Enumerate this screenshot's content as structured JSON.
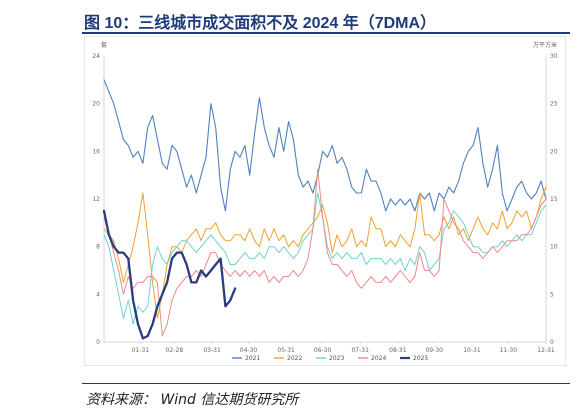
{
  "title": "图 10：三线城市成交面积不及 2024 年（7DMA）",
  "source": "资料来源：   Wind   信达期货研究所",
  "chart_data": {
    "type": "line",
    "left_unit": "套",
    "right_unit": "万平方米",
    "left_ylim": [
      0,
      24
    ],
    "right_ylim": [
      0,
      30
    ],
    "left_ticks": [
      "0",
      "4",
      "8",
      "12",
      "16",
      "20",
      "24"
    ],
    "right_ticks": [
      "0",
      "5",
      "10",
      "15",
      "20",
      "25",
      "30"
    ],
    "x_ticks": [
      {
        "label": "01-31",
        "day": 30
      },
      {
        "label": "02-28",
        "day": 58
      },
      {
        "label": "03-31",
        "day": 89
      },
      {
        "label": "04-30",
        "day": 119
      },
      {
        "label": "05-31",
        "day": 150
      },
      {
        "label": "06-30",
        "day": 180
      },
      {
        "label": "07-31",
        "day": 211
      },
      {
        "label": "08-31",
        "day": 242
      },
      {
        "label": "09-30",
        "day": 272
      },
      {
        "label": "10-31",
        "day": 303
      },
      {
        "label": "11-30",
        "day": 333
      },
      {
        "label": "12-31",
        "day": 364
      }
    ],
    "x_range": [
      0,
      364
    ],
    "series": [
      {
        "name": "2021",
        "color": "#4f81bd",
        "width": 1.1,
        "x": [
          0,
          4,
          8,
          12,
          16,
          20,
          24,
          28,
          32,
          36,
          40,
          44,
          48,
          52,
          56,
          60,
          64,
          68,
          72,
          76,
          80,
          84,
          88,
          92,
          96,
          100,
          104,
          108,
          112,
          116,
          120,
          124,
          128,
          132,
          136,
          140,
          144,
          148,
          152,
          156,
          160,
          164,
          168,
          172,
          176,
          180,
          184,
          188,
          192,
          196,
          200,
          204,
          208,
          212,
          216,
          220,
          224,
          228,
          232,
          236,
          240,
          244,
          248,
          252,
          256,
          260,
          264,
          268,
          272,
          276,
          280,
          284,
          288,
          292,
          296,
          300,
          304,
          308,
          312,
          316,
          320,
          324,
          328,
          332,
          336,
          340,
          344,
          348,
          352,
          356,
          360,
          364
        ],
        "y": [
          22,
          21,
          20,
          18.5,
          17,
          16.5,
          15.5,
          16,
          15,
          18,
          19,
          17,
          15,
          14.5,
          16.5,
          16,
          14.5,
          13,
          14,
          12.5,
          14,
          15.5,
          20,
          18,
          13,
          11,
          14.5,
          16,
          15.5,
          16.5,
          14,
          17.5,
          20.5,
          18,
          16.5,
          15.5,
          18,
          16,
          18.5,
          17,
          14,
          13,
          13.5,
          12.5,
          14,
          16,
          15.5,
          16.5,
          15,
          15.5,
          14.5,
          13,
          12.5,
          12.5,
          14.5,
          13.5,
          13.5,
          12.5,
          11,
          12,
          11.5,
          12,
          11.5,
          12,
          11,
          12.5,
          12,
          12.5,
          11,
          12.5,
          12,
          13,
          12.5,
          13.5,
          15,
          16,
          16.5,
          18,
          15,
          13,
          14.5,
          16.5,
          12.5,
          11,
          12,
          13,
          13.5,
          12.5,
          12,
          12.5,
          13.5,
          12
        ]
      },
      {
        "name": "2022",
        "color": "#f0a030",
        "width": 1.0,
        "x": [
          0,
          4,
          8,
          12,
          16,
          20,
          24,
          28,
          32,
          36,
          40,
          44,
          48,
          52,
          56,
          60,
          64,
          68,
          72,
          76,
          80,
          84,
          88,
          92,
          96,
          100,
          104,
          108,
          112,
          116,
          120,
          124,
          128,
          132,
          136,
          140,
          144,
          148,
          152,
          156,
          160,
          164,
          168,
          172,
          176,
          180,
          184,
          188,
          192,
          196,
          200,
          204,
          208,
          212,
          216,
          220,
          224,
          228,
          232,
          236,
          240,
          244,
          248,
          252,
          256,
          260,
          264,
          268,
          272,
          276,
          280,
          284,
          288,
          292,
          296,
          300,
          304,
          308,
          312,
          316,
          320,
          324,
          328,
          332,
          336,
          340,
          344,
          348,
          352,
          356,
          360,
          364
        ],
        "y": [
          9.5,
          9,
          8.5,
          7,
          5,
          6.5,
          8,
          10,
          12.5,
          9,
          5,
          2,
          4,
          6.5,
          8,
          8,
          7.5,
          8.5,
          9,
          9.5,
          8.5,
          9.5,
          9.5,
          10,
          9,
          8.5,
          8.5,
          9,
          9,
          8.5,
          9.5,
          8.5,
          8,
          9.5,
          8.5,
          9.5,
          8.5,
          9,
          8,
          8.5,
          8,
          9,
          9.5,
          10,
          10.5,
          11.5,
          10,
          7.5,
          9,
          8,
          8.5,
          9.5,
          8,
          8.5,
          8,
          10.5,
          9.5,
          9.5,
          8,
          8.5,
          8,
          9,
          8.5,
          8,
          9.5,
          12.5,
          9,
          9,
          8.5,
          9,
          10.5,
          9.5,
          10.5,
          9,
          9.5,
          8.5,
          9.5,
          10.5,
          9.5,
          9,
          10,
          9.5,
          11,
          9.5,
          10,
          11,
          10.5,
          11,
          9.5,
          10.5,
          12,
          13
        ]
      },
      {
        "name": "2023",
        "color": "#6fd3cf",
        "width": 1.0,
        "x": [
          0,
          4,
          8,
          12,
          16,
          20,
          24,
          28,
          32,
          36,
          40,
          44,
          48,
          52,
          56,
          60,
          64,
          68,
          72,
          76,
          80,
          84,
          88,
          92,
          96,
          100,
          104,
          108,
          112,
          116,
          120,
          124,
          128,
          132,
          136,
          140,
          144,
          148,
          152,
          156,
          160,
          164,
          168,
          172,
          176,
          180,
          184,
          188,
          192,
          196,
          200,
          204,
          208,
          212,
          216,
          220,
          224,
          228,
          232,
          236,
          240,
          244,
          248,
          252,
          256,
          260,
          264,
          268,
          272,
          276,
          280,
          284,
          288,
          292,
          296,
          300,
          304,
          308,
          312,
          316,
          320,
          324,
          328,
          332,
          336,
          340,
          344,
          348,
          352,
          356,
          360,
          364
        ],
        "y": [
          9,
          8,
          6,
          4,
          2,
          3.5,
          1.5,
          3,
          2.5,
          3,
          6.5,
          8,
          7,
          6.5,
          7.5,
          8,
          8.5,
          8.5,
          8,
          7.5,
          8,
          8.5,
          9,
          8.5,
          8,
          7.5,
          6.5,
          6.5,
          7,
          7.5,
          7,
          7,
          7.5,
          7,
          8,
          8,
          7.5,
          8,
          7.5,
          7,
          7.5,
          8.5,
          9,
          9.5,
          12.5,
          10.5,
          8,
          7,
          7.5,
          7,
          7.5,
          7,
          7,
          7.5,
          6.5,
          7,
          7,
          7,
          6.5,
          7,
          6.5,
          7,
          6,
          7,
          6.5,
          8,
          7.5,
          6,
          6.5,
          7,
          9.5,
          10,
          11,
          10.5,
          10,
          9,
          8,
          8,
          7.5,
          7.5,
          8,
          8,
          8.5,
          8,
          8.5,
          9,
          8.5,
          9,
          9,
          10,
          11,
          11.5
        ]
      },
      {
        "name": "2024",
        "color": "#ef8a8a",
        "width": 1.0,
        "x": [
          0,
          4,
          8,
          12,
          16,
          20,
          24,
          28,
          32,
          36,
          40,
          44,
          48,
          52,
          56,
          60,
          64,
          68,
          72,
          76,
          80,
          84,
          88,
          92,
          96,
          100,
          104,
          108,
          112,
          116,
          120,
          124,
          128,
          132,
          136,
          140,
          144,
          148,
          152,
          156,
          160,
          164,
          168,
          172,
          176,
          180,
          184,
          188,
          192,
          196,
          200,
          204,
          208,
          212,
          216,
          220,
          224,
          228,
          232,
          236,
          240,
          244,
          248,
          252,
          256,
          260,
          264,
          268,
          272,
          276,
          280,
          284,
          288,
          292,
          296,
          300,
          304,
          308,
          312,
          316,
          320,
          324,
          328,
          332,
          336,
          340,
          344,
          348,
          352,
          356,
          360,
          364
        ],
        "y": [
          10.5,
          9,
          7.5,
          6,
          4,
          5.5,
          4.5,
          5,
          5,
          5.5,
          5.5,
          5,
          0.5,
          1.5,
          3.5,
          4.5,
          5,
          5.5,
          5.5,
          6,
          5.5,
          6.5,
          7.5,
          7.5,
          6.5,
          6,
          5.5,
          6,
          5.5,
          6,
          5.5,
          6,
          5.5,
          6,
          5,
          5.5,
          5,
          5.5,
          5.5,
          6,
          5.5,
          6,
          7,
          9.5,
          14.5,
          10.5,
          7.5,
          6.5,
          6.5,
          6,
          5.5,
          6,
          5,
          4.5,
          5,
          5.5,
          5,
          5,
          5.5,
          5,
          5.5,
          6,
          5.5,
          5,
          5.5,
          7.5,
          6,
          6,
          5.5,
          6,
          12,
          11,
          10,
          9.5,
          8.5,
          8,
          7.5,
          7.5,
          7,
          7.5,
          8,
          7.5,
          8,
          8.5,
          8.5,
          8.5,
          9,
          9,
          9.5,
          10.5,
          11.5,
          12
        ]
      },
      {
        "name": "2025",
        "color": "#2b3b7e",
        "width": 2.3,
        "x": [
          0,
          4,
          8,
          12,
          16,
          20,
          24,
          28,
          32,
          36,
          40,
          44,
          48,
          52,
          56,
          60,
          64,
          68,
          72,
          76,
          80,
          84,
          88,
          92,
          96,
          100,
          104,
          108
        ],
        "y": [
          11,
          9,
          8,
          7.5,
          7.5,
          7,
          3.5,
          1.5,
          0.3,
          0.5,
          1.5,
          3,
          4,
          5,
          7,
          7.5,
          7.5,
          6.5,
          5,
          5,
          6,
          5.5,
          6,
          6.5,
          7,
          3,
          3.5,
          4.5
        ]
      }
    ]
  }
}
